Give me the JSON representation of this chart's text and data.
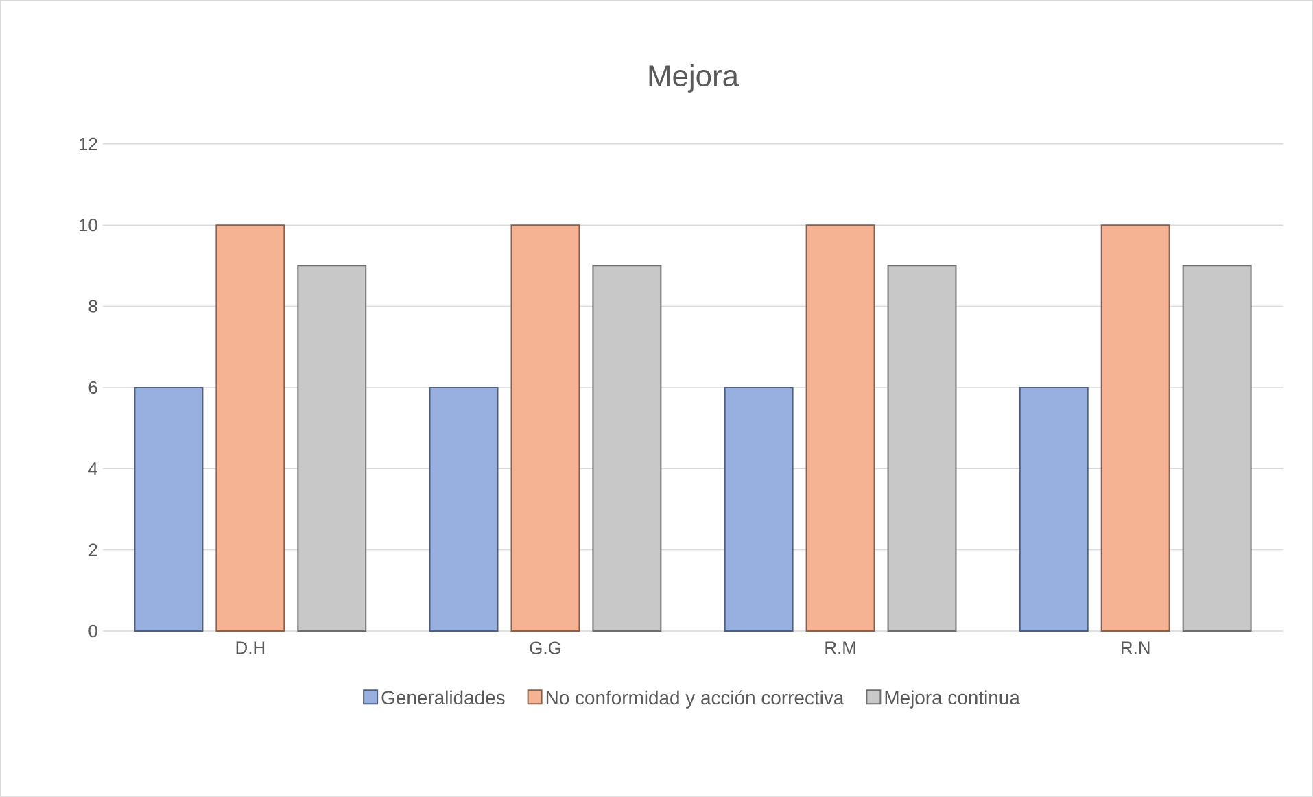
{
  "chart_data": {
    "type": "bar",
    "title": "Mejora",
    "categories": [
      "D.H",
      "G.G",
      "R.M",
      "R.N"
    ],
    "series": [
      {
        "name": "Generalidades",
        "color": "#98b0e0",
        "values": [
          6,
          6,
          6,
          6
        ]
      },
      {
        "name": "No conformidad y acción correctiva",
        "color": "#f6b393",
        "values": [
          10,
          10,
          10,
          10
        ]
      },
      {
        "name": "Mejora continua",
        "color": "#c8c8c8",
        "values": [
          9,
          9,
          9,
          9
        ]
      }
    ],
    "ylim": [
      0,
      12
    ],
    "yticks": [
      0,
      2,
      4,
      6,
      8,
      10,
      12
    ],
    "grid": "y",
    "legend": "bottom"
  }
}
